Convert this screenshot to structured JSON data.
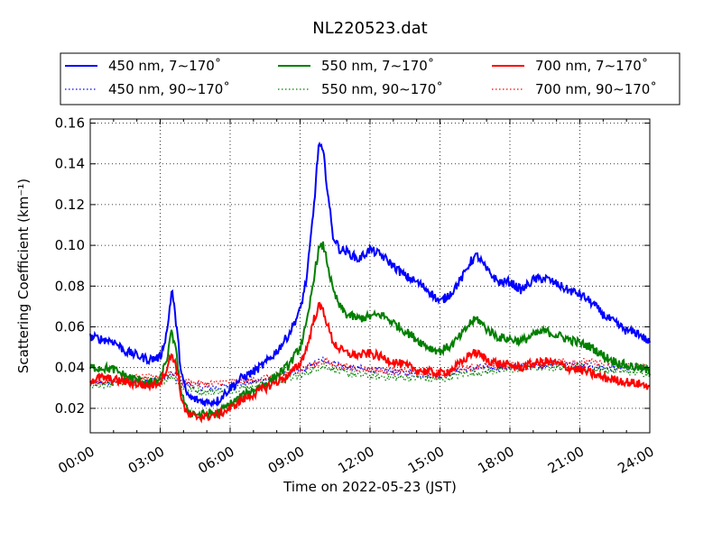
{
  "chart_data": {
    "type": "line",
    "title": "NL220523.dat",
    "xlabel": "Time on 2022-05-23 (JST)",
    "ylabel": "Scattering Coefficient (km⁻¹)",
    "xlim": [
      0,
      24
    ],
    "ylim": [
      0.008,
      0.162
    ],
    "x_ticks": [
      0,
      3,
      6,
      9,
      12,
      15,
      18,
      21,
      24
    ],
    "x_tick_labels": [
      "00:00",
      "03:00",
      "06:00",
      "09:00",
      "12:00",
      "15:00",
      "18:00",
      "21:00",
      "24:00"
    ],
    "y_ticks": [
      0.02,
      0.04,
      0.06,
      0.08,
      0.1,
      0.12,
      0.14,
      0.16
    ],
    "y_tick_labels": [
      "0.02",
      "0.04",
      "0.06",
      "0.08",
      "0.10",
      "0.12",
      "0.14",
      "0.16"
    ],
    "grid": true,
    "legend_position": "top, above plot, 3 columns",
    "series": [
      {
        "name": "450 nm, 7∼170˚",
        "color": "#0000ff",
        "style": "solid",
        "x": [
          0,
          0.5,
          1,
          1.5,
          2,
          2.5,
          3,
          3.3,
          3.5,
          3.7,
          3.9,
          4.1,
          4.3,
          4.6,
          5,
          5.5,
          6,
          6.5,
          7,
          7.5,
          8,
          8.5,
          9,
          9.3,
          9.6,
          9.8,
          10,
          10.2,
          10.4,
          10.7,
          11,
          11.5,
          12,
          12.5,
          13,
          13.5,
          14,
          14.5,
          15,
          15.5,
          16,
          16.3,
          16.6,
          17,
          17.5,
          18,
          18.5,
          19,
          19.5,
          20,
          20.5,
          21,
          21.5,
          22,
          22.5,
          23,
          23.5,
          24
        ],
        "y": [
          0.055,
          0.054,
          0.053,
          0.048,
          0.046,
          0.044,
          0.045,
          0.058,
          0.079,
          0.06,
          0.038,
          0.028,
          0.025,
          0.024,
          0.023,
          0.024,
          0.03,
          0.035,
          0.038,
          0.042,
          0.048,
          0.056,
          0.068,
          0.085,
          0.12,
          0.15,
          0.145,
          0.125,
          0.105,
          0.098,
          0.097,
          0.093,
          0.098,
          0.095,
          0.09,
          0.085,
          0.082,
          0.078,
          0.072,
          0.077,
          0.085,
          0.092,
          0.095,
          0.088,
          0.082,
          0.082,
          0.078,
          0.083,
          0.084,
          0.081,
          0.078,
          0.076,
          0.072,
          0.066,
          0.062,
          0.058,
          0.057,
          0.052
        ]
      },
      {
        "name": "450 nm, 90∼170˚",
        "color": "#0000ff",
        "style": "dotted",
        "x": [
          0,
          1,
          2,
          3,
          3.5,
          4,
          5,
          6,
          7,
          8,
          9,
          10,
          11,
          12,
          13,
          14,
          15,
          16,
          17,
          18,
          19,
          20,
          21,
          22,
          23,
          24
        ],
        "y": [
          0.032,
          0.033,
          0.034,
          0.034,
          0.037,
          0.032,
          0.03,
          0.031,
          0.033,
          0.035,
          0.038,
          0.044,
          0.04,
          0.039,
          0.038,
          0.037,
          0.036,
          0.039,
          0.04,
          0.04,
          0.041,
          0.042,
          0.041,
          0.04,
          0.04,
          0.039
        ]
      },
      {
        "name": "550 nm, 7∼170˚",
        "color": "#008000",
        "style": "solid",
        "x": [
          0,
          0.5,
          1,
          1.5,
          2,
          2.5,
          3,
          3.3,
          3.5,
          3.7,
          3.9,
          4.1,
          4.3,
          4.6,
          5,
          5.5,
          6,
          6.5,
          7,
          7.5,
          8,
          8.5,
          9,
          9.3,
          9.6,
          9.8,
          10,
          10.2,
          10.4,
          10.7,
          11,
          11.5,
          12,
          12.5,
          13,
          13.5,
          14,
          14.5,
          15,
          15.5,
          16,
          16.3,
          16.6,
          17,
          17.5,
          18,
          18.5,
          19,
          19.5,
          20,
          20.5,
          21,
          21.5,
          22,
          22.5,
          23,
          23.5,
          24
        ],
        "y": [
          0.04,
          0.04,
          0.039,
          0.036,
          0.034,
          0.032,
          0.034,
          0.045,
          0.058,
          0.046,
          0.028,
          0.02,
          0.018,
          0.017,
          0.017,
          0.018,
          0.022,
          0.026,
          0.029,
          0.032,
          0.036,
          0.041,
          0.05,
          0.062,
          0.085,
          0.098,
          0.1,
          0.09,
          0.078,
          0.07,
          0.066,
          0.064,
          0.065,
          0.066,
          0.062,
          0.058,
          0.054,
          0.05,
          0.048,
          0.051,
          0.057,
          0.062,
          0.064,
          0.059,
          0.055,
          0.054,
          0.053,
          0.056,
          0.058,
          0.056,
          0.054,
          0.052,
          0.05,
          0.046,
          0.043,
          0.041,
          0.04,
          0.038
        ]
      },
      {
        "name": "550 nm, 90∼170˚",
        "color": "#008000",
        "style": "dotted",
        "x": [
          0,
          1,
          2,
          3,
          3.5,
          4,
          5,
          6,
          7,
          8,
          9,
          10,
          11,
          12,
          13,
          14,
          15,
          16,
          17,
          18,
          19,
          20,
          21,
          22,
          23,
          24
        ],
        "y": [
          0.031,
          0.032,
          0.033,
          0.033,
          0.036,
          0.03,
          0.028,
          0.029,
          0.031,
          0.033,
          0.036,
          0.041,
          0.037,
          0.036,
          0.035,
          0.035,
          0.034,
          0.037,
          0.038,
          0.039,
          0.04,
          0.04,
          0.04,
          0.039,
          0.038,
          0.037
        ]
      },
      {
        "name": "700 nm, 7∼170˚",
        "color": "#ff0000",
        "style": "solid",
        "x": [
          0,
          0.5,
          1,
          1.5,
          2,
          2.5,
          3,
          3.3,
          3.5,
          3.7,
          3.9,
          4.1,
          4.3,
          4.6,
          5,
          5.5,
          6,
          6.5,
          7,
          7.5,
          8,
          8.5,
          9,
          9.3,
          9.6,
          9.8,
          10,
          10.2,
          10.4,
          10.7,
          11,
          11.5,
          12,
          12.5,
          13,
          13.5,
          14,
          14.5,
          15,
          15.5,
          16,
          16.3,
          16.6,
          17,
          17.5,
          18,
          18.5,
          19,
          19.5,
          20,
          20.5,
          21,
          21.5,
          22,
          22.5,
          23,
          23.5,
          24
        ],
        "y": [
          0.034,
          0.035,
          0.034,
          0.033,
          0.032,
          0.031,
          0.033,
          0.04,
          0.047,
          0.04,
          0.026,
          0.018,
          0.016,
          0.016,
          0.016,
          0.017,
          0.02,
          0.024,
          0.027,
          0.03,
          0.033,
          0.036,
          0.042,
          0.05,
          0.064,
          0.07,
          0.068,
          0.06,
          0.053,
          0.049,
          0.047,
          0.046,
          0.047,
          0.045,
          0.043,
          0.041,
          0.039,
          0.038,
          0.037,
          0.039,
          0.043,
          0.047,
          0.047,
          0.044,
          0.042,
          0.041,
          0.04,
          0.042,
          0.043,
          0.042,
          0.04,
          0.039,
          0.037,
          0.035,
          0.034,
          0.033,
          0.032,
          0.031
        ]
      },
      {
        "name": "700 nm, 90∼170˚",
        "color": "#ff0000",
        "style": "dotted",
        "x": [
          0,
          1,
          2,
          3,
          3.5,
          4,
          5,
          6,
          7,
          8,
          9,
          10,
          11,
          12,
          13,
          14,
          15,
          16,
          17,
          18,
          19,
          20,
          21,
          22,
          23,
          24
        ],
        "y": [
          0.033,
          0.034,
          0.035,
          0.035,
          0.038,
          0.033,
          0.032,
          0.033,
          0.034,
          0.036,
          0.039,
          0.043,
          0.04,
          0.039,
          0.038,
          0.038,
          0.037,
          0.04,
          0.041,
          0.041,
          0.042,
          0.043,
          0.043,
          0.042,
          0.041,
          0.04
        ]
      }
    ]
  }
}
